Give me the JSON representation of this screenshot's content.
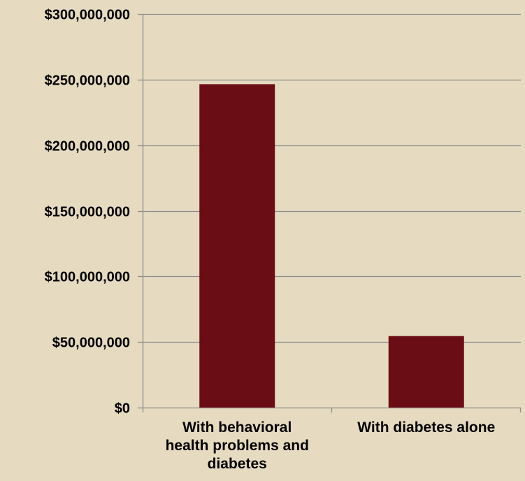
{
  "chart_data": {
    "type": "bar",
    "title": "",
    "xlabel": "",
    "ylabel": "",
    "categories": [
      "With behavioral health problems and diabetes",
      "With diabetes alone"
    ],
    "category_label_lines": [
      [
        "With behavioral",
        "health problems and",
        "diabetes"
      ],
      [
        "With diabetes alone"
      ]
    ],
    "values": [
      246500000,
      54500000
    ],
    "ylim": [
      0,
      300000000
    ],
    "yticks": [
      0,
      50000000,
      100000000,
      150000000,
      200000000,
      250000000,
      300000000
    ],
    "ytick_labels": [
      "$0",
      "$50,000,000",
      "$100,000,000",
      "$150,000,000",
      "$200,000,000",
      "$250,000,000",
      "$300,000,000"
    ],
    "grid": true,
    "legend": "none",
    "colors": {
      "bar": "#6b0d14",
      "grid": "#8c8c8c",
      "axis": "#8c8c8c",
      "background": "#e6dbc0",
      "text": "#000000"
    }
  }
}
